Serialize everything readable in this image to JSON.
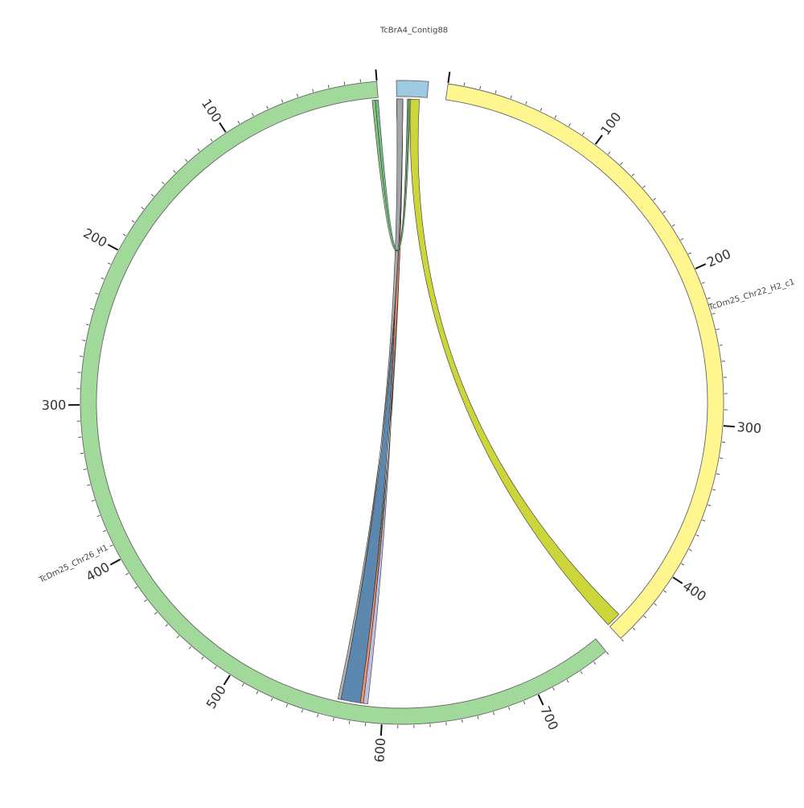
{
  "diagram": {
    "type": "circos",
    "chromosomes": [
      {
        "id": "contig88",
        "name": "TcBrA4_Contig88",
        "length": 20,
        "color": "#9ecae1",
        "ticks": false
      },
      {
        "id": "chr22",
        "name": "TcDm25_Chr22_H2_c1",
        "length": 450,
        "color": "#fff68f",
        "ticks": true
      },
      {
        "id": "chr26",
        "name": "TcDm25_Chr26_H1",
        "length": 750,
        "color": "#a1d99b",
        "ticks": true,
        "reverse": true
      }
    ],
    "ribbons": [
      {
        "from": {
          "chr": "contig88",
          "start": 0,
          "end": 4
        },
        "to": {
          "chr": "chr26",
          "start": 587,
          "end": 590
        },
        "color": "#b8b8e0"
      },
      {
        "from": {
          "chr": "contig88",
          "start": 0,
          "end": 4
        },
        "to": {
          "chr": "chr26",
          "start": 585,
          "end": 587
        },
        "color": "#f08a5d"
      },
      {
        "from": {
          "chr": "contig88",
          "start": 0,
          "end": 4
        },
        "to": {
          "chr": "chr26",
          "start": 572,
          "end": 585
        },
        "color": "#4e7ea9"
      },
      {
        "from": {
          "chr": "contig88",
          "start": 0,
          "end": 4
        },
        "to": {
          "chr": "chr26",
          "start": 570,
          "end": 572
        },
        "color": "#aaaaaa"
      },
      {
        "from": {
          "chr": "contig88",
          "start": 7,
          "end": 8
        },
        "to": {
          "chr": "chr26",
          "start": 0,
          "end": 2
        },
        "color": "#66b88a"
      },
      {
        "from": {
          "chr": "contig88",
          "start": 8,
          "end": 9
        },
        "to": {
          "chr": "chr26",
          "start": 2,
          "end": 4
        },
        "color": "#7cc06a"
      },
      {
        "from": {
          "chr": "contig88",
          "start": 9,
          "end": 15
        },
        "to": {
          "chr": "chr22",
          "start": 440,
          "end": 450
        },
        "color": "#c8d22a"
      }
    ]
  }
}
